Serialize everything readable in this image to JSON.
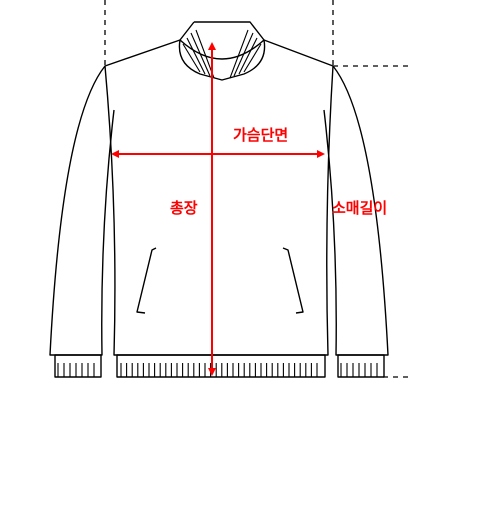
{
  "labels": {
    "chest_width": "가슴단면",
    "total_length": "총장",
    "sleeve_length": "소매길이"
  },
  "colors": {
    "outline": "#000000",
    "measure": "#ff0000",
    "background": "#ffffff"
  }
}
